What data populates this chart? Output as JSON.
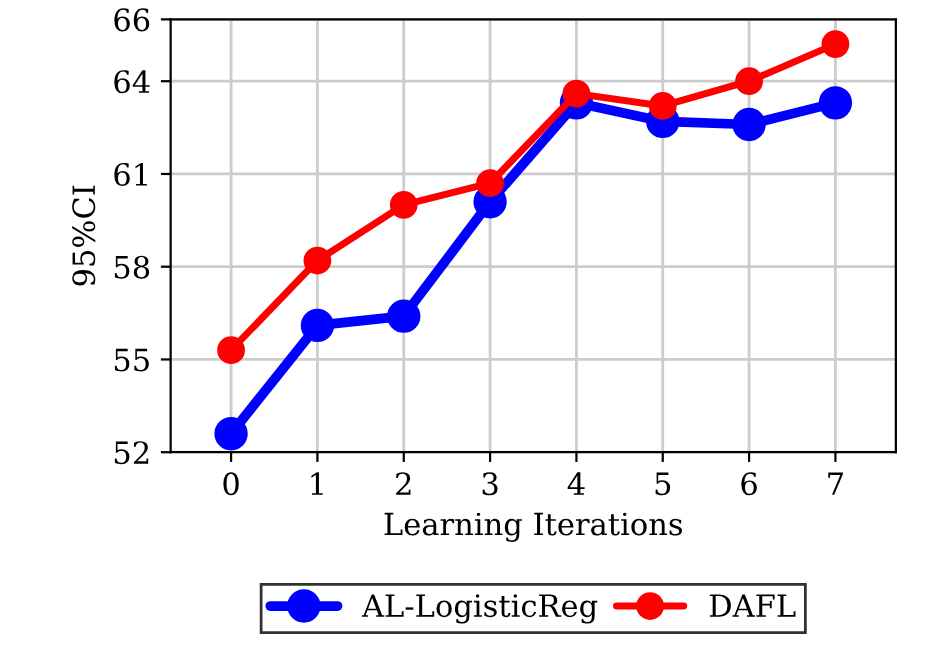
{
  "chart_data": {
    "type": "line",
    "xlabel": "Learning Iterations",
    "ylabel": "95%CI",
    "x": [
      0,
      1,
      2,
      3,
      4,
      5,
      6,
      7
    ],
    "series": [
      {
        "name": "AL-LogisticReg",
        "color": "#0000ff",
        "values": [
          52.6,
          56.1,
          56.4,
          60.1,
          63.3,
          62.7,
          62.6,
          63.3
        ]
      },
      {
        "name": "DAFL",
        "color": "#ff0000",
        "values": [
          55.3,
          58.2,
          60.0,
          60.7,
          63.6,
          63.2,
          64.0,
          65.2
        ]
      }
    ],
    "xlim": [
      -0.7,
      7.7
    ],
    "xticks": [
      0,
      1,
      2,
      3,
      4,
      5,
      6,
      7
    ],
    "ylim": [
      52,
      66
    ],
    "yticks": [
      52,
      55,
      58,
      61,
      64,
      66
    ],
    "grid": true,
    "legend": "bottom",
    "marker": "circle",
    "line_style": "solid"
  }
}
